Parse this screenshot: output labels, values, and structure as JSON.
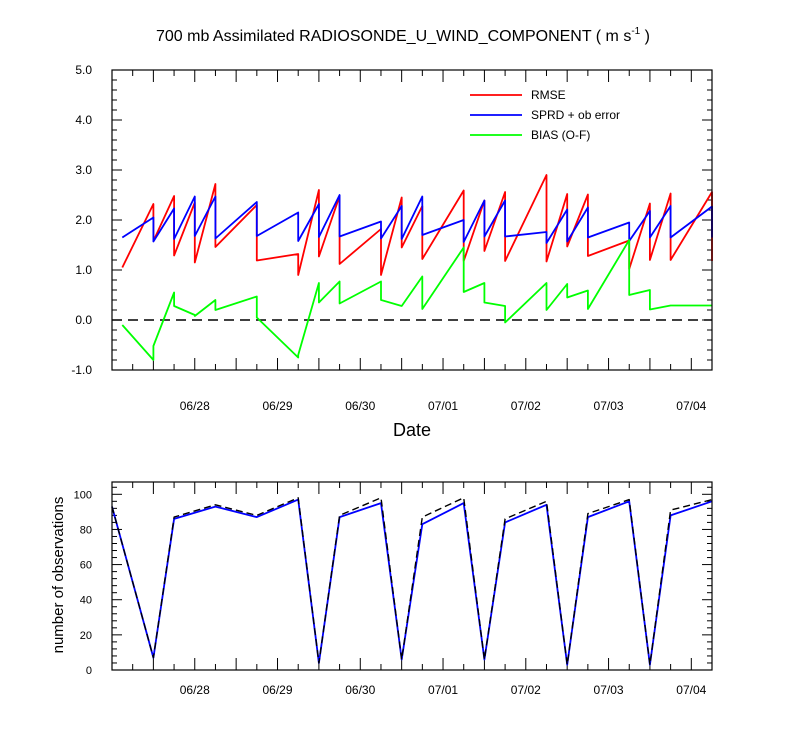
{
  "figure": {
    "title_main": "700 mb Assimilated RADIOSONDE_U_WIND_COMPONENT ( m s",
    "title_sup": "-1",
    "title_end": " )"
  },
  "chart_data": [
    {
      "type": "line",
      "xlabel": "Date",
      "ylabel": "",
      "ylim": [
        -1.0,
        5.0
      ],
      "yticks": [
        "5.0",
        "4.0",
        "3.0",
        "2.0",
        "1.0",
        "0.0",
        "-1.0"
      ],
      "x_tick_labels": [
        "06/28",
        "06/29",
        "06/30",
        "07/01",
        "07/02",
        "07/03",
        "07/04"
      ],
      "x": [
        "06/27 15h",
        "06/28 00h",
        "06/28 00h",
        "06/28 06h",
        "06/28 06h",
        "06/28 12h",
        "06/28 12h",
        "06/28 18h",
        "06/28 18h",
        "06/29 06h",
        "06/29 06h",
        "06/29 18h",
        "06/29 18h",
        "06/30 00h",
        "06/30 00h",
        "06/30 06h",
        "06/30 06h",
        "06/30 18h",
        "06/30 18h",
        "07/01 00h",
        "07/01 00h",
        "07/01 06h",
        "07/01 06h",
        "07/01 18h",
        "07/01 18h",
        "07/02 00h",
        "07/02 00h",
        "07/02 06h",
        "07/02 06h",
        "07/02 18h",
        "07/02 18h",
        "07/03 00h",
        "07/03 00h",
        "07/03 06h",
        "07/03 06h",
        "07/03 18h",
        "07/03 18h",
        "07/04 00h",
        "07/04 00h",
        "07/04 06h",
        "07/04 06h",
        "07/04 18h",
        "07/04 18h"
      ],
      "series": [
        {
          "name": "RMSE",
          "color": "#ff0000",
          "values": [
            1.05,
            2.32,
            1.58,
            2.48,
            1.29,
            2.35,
            1.15,
            2.72,
            1.46,
            2.3,
            1.19,
            1.32,
            0.9,
            2.6,
            1.27,
            2.48,
            1.12,
            1.82,
            0.9,
            2.45,
            1.45,
            2.28,
            1.22,
            2.59,
            1.18,
            2.39,
            1.38,
            2.56,
            1.18,
            2.9,
            1.17,
            2.52,
            1.47,
            2.51,
            1.28,
            1.59,
            1.02,
            2.33,
            1.2,
            2.53,
            1.2,
            2.56,
            1.18
          ]
        },
        {
          "name": "SPRD + ob error",
          "color": "#0000ff",
          "values": [
            1.65,
            2.05,
            1.57,
            2.23,
            1.62,
            2.47,
            1.68,
            2.47,
            1.63,
            2.36,
            1.68,
            2.15,
            1.58,
            2.32,
            1.66,
            2.5,
            1.67,
            1.97,
            1.63,
            2.28,
            1.62,
            2.47,
            1.7,
            2.0,
            1.56,
            2.39,
            1.67,
            2.39,
            1.67,
            1.76,
            1.54,
            2.21,
            1.57,
            2.25,
            1.65,
            1.95,
            1.58,
            2.18,
            1.65,
            2.28,
            1.65,
            2.27,
            1.65
          ]
        },
        {
          "name": "BIAS (O-F)",
          "color": "#00ff00",
          "values": [
            -0.1,
            -0.8,
            -0.52,
            0.55,
            0.28,
            0.1,
            0.08,
            0.4,
            0.2,
            0.47,
            0.05,
            -0.75,
            -0.7,
            0.74,
            0.35,
            0.77,
            0.33,
            0.77,
            0.4,
            0.28,
            0.28,
            0.87,
            0.22,
            1.45,
            0.56,
            0.74,
            0.35,
            0.28,
            -0.05,
            0.74,
            0.2,
            0.72,
            0.45,
            0.59,
            0.22,
            1.6,
            0.5,
            0.6,
            0.21,
            0.29,
            0.29,
            0.29,
            0.29
          ]
        }
      ],
      "zero_line": {
        "y": 0.0,
        "style": "dashed"
      },
      "grid": false,
      "legend_placement": "top-right"
    },
    {
      "type": "line",
      "xlabel": "",
      "ylabel": "number of observations",
      "ylim": [
        0,
        107
      ],
      "yticks": [
        "100",
        "80",
        "60",
        "40",
        "20",
        "0"
      ],
      "x_tick_labels": [
        "06/28",
        "06/29",
        "06/30",
        "07/01",
        "07/02",
        "07/03",
        "07/04"
      ],
      "x": [
        "06/27 12h",
        "06/28 00h",
        "06/28 06h",
        "06/28 18h",
        "06/29 06h",
        "06/29 18h",
        "06/30 00h",
        "06/30 06h",
        "06/30 18h",
        "07/01 00h",
        "07/01 06h",
        "07/01 18h",
        "07/02 00h",
        "07/02 06h",
        "07/02 18h",
        "07/03 00h",
        "07/03 06h",
        "07/03 18h",
        "07/04 00h",
        "07/04 06h",
        "07/04 18h"
      ],
      "series": [
        {
          "color": "#0000ff",
          "values": [
            93,
            7,
            86,
            93,
            87,
            97,
            4,
            87,
            95,
            6,
            83,
            95,
            6,
            84,
            94,
            3,
            87,
            96,
            3,
            88,
            96
          ]
        },
        {
          "color": "#000000",
          "style": "dashed",
          "values": [
            93,
            7,
            87,
            94,
            88,
            98,
            4,
            88,
            98,
            6,
            87,
            98,
            6,
            86,
            96,
            3,
            89,
            97,
            3,
            91,
            97
          ]
        }
      ],
      "grid": false
    }
  ]
}
